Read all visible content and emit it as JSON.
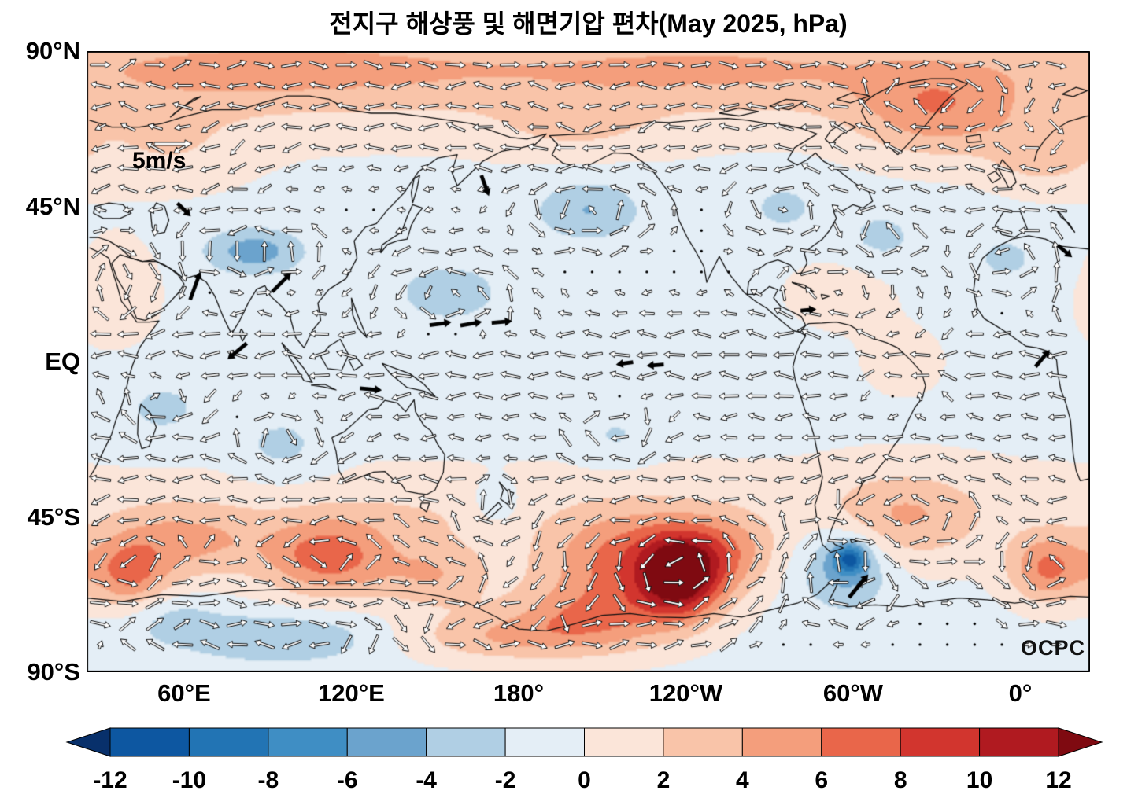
{
  "title": "전지구 해상풍 및 해면기압 편차(May 2025, hPa)",
  "watermark": "OCPC",
  "legend": {
    "ref_arrow_label": "5m/s",
    "ref_speed_mps": 5
  },
  "axes": {
    "lat_ticks": [
      {
        "label": "90°N",
        "lat": 90
      },
      {
        "label": "45°N",
        "lat": 45
      },
      {
        "label": "EQ",
        "lat": 0
      },
      {
        "label": "45°S",
        "lat": -45
      },
      {
        "label": "90°S",
        "lat": -90
      }
    ],
    "lon_ticks": [
      {
        "label": "60°E",
        "lon": 60
      },
      {
        "label": "120°E",
        "lon": 120
      },
      {
        "label": "180°",
        "lon": 180
      },
      {
        "label": "120°W",
        "lon": 240
      },
      {
        "label": "60°W",
        "lon": 300
      },
      {
        "label": "0°",
        "lon": 360
      }
    ]
  },
  "colorbar": {
    "ticks": [
      -12,
      -10,
      -8,
      -6,
      -4,
      -2,
      0,
      2,
      4,
      6,
      8,
      10,
      12
    ],
    "colors": [
      "#08306b",
      "#0d57a1",
      "#2274b4",
      "#3f8ec4",
      "#6ba3cd",
      "#b0cfe4",
      "#e4eef6",
      "#fbe5d9",
      "#f9c4a9",
      "#f49e7c",
      "#e9664a",
      "#d2352e",
      "#b01a20",
      "#7f0a11"
    ],
    "unit": "hPa"
  },
  "chart_data": {
    "type": "heatmap",
    "variable": "global sea level pressure anomaly",
    "vector_overlay": "surface wind anomaly vectors, reference arrow 5 m/s",
    "period": "May 2025",
    "units": "hPa",
    "lat_range": [
      -90,
      90
    ],
    "lon_start_deg_east": 25,
    "value_range": [
      -12,
      12
    ],
    "contour_interval": 2,
    "background_profile": "weakly negative (about -0.6 hPa) in tropics, weakly positive over the Arctic (about +1.4) and southern mid-latitudes (about +0.4)",
    "anomaly_centers": [
      {
        "lon": 90,
        "lat": 85,
        "v": 3.5,
        "sx": 60,
        "sy": 8
      },
      {
        "lon": 250,
        "lat": 85,
        "v": 3,
        "sx": 60,
        "sy": 8
      },
      {
        "lon": 330,
        "lat": 72,
        "v": 4.5,
        "sx": 20,
        "sy": 9
      },
      {
        "lon": 8,
        "lat": 60,
        "v": 3,
        "sx": 14,
        "sy": 8
      },
      {
        "lon": 55,
        "lat": 62,
        "v": 2,
        "sx": 20,
        "sy": 9
      },
      {
        "lon": 200,
        "lat": 68,
        "v": 2,
        "sx": 20,
        "sy": 6
      },
      {
        "lon": 35,
        "lat": 20,
        "v": 1.8,
        "sx": 12,
        "sy": 12
      },
      {
        "lon": 295,
        "lat": 20,
        "v": 1.5,
        "sx": 15,
        "sy": 8
      },
      {
        "lon": 318,
        "lat": 0,
        "v": 1.3,
        "sx": 12,
        "sy": 8
      },
      {
        "lon": 60,
        "lat": -52,
        "v": 4.5,
        "sx": 22,
        "sy": 8
      },
      {
        "lon": 112,
        "lat": -57,
        "v": 7,
        "sx": 16,
        "sy": 8
      },
      {
        "lon": 150,
        "lat": -62,
        "v": 4,
        "sx": 14,
        "sy": 7
      },
      {
        "lon": 40,
        "lat": -62,
        "v": 6,
        "sx": 10,
        "sy": 7
      },
      {
        "lon": 10,
        "lat": -60,
        "v": 6.5,
        "sx": 10,
        "sy": 7
      },
      {
        "lon": 220,
        "lat": -58,
        "v": 7,
        "sx": 22,
        "sy": 11
      },
      {
        "lon": 238,
        "lat": -62,
        "v": 12,
        "sx": 10,
        "sy": 8
      },
      {
        "lon": 255,
        "lat": -55,
        "v": 4,
        "sx": 12,
        "sy": 8
      },
      {
        "lon": 205,
        "lat": -75,
        "v": 5,
        "sx": 22,
        "sy": 7
      },
      {
        "lon": 170,
        "lat": -80,
        "v": 3.5,
        "sx": 25,
        "sy": 5
      },
      {
        "lon": 318,
        "lat": -45,
        "v": 4,
        "sx": 20,
        "sy": 9
      },
      {
        "lon": 140,
        "lat": -45,
        "v": 1.5,
        "sx": 25,
        "sy": 6
      },
      {
        "lon": 205,
        "lat": 44,
        "v": -3.5,
        "sx": 13,
        "sy": 6
      },
      {
        "lon": 155,
        "lat": 20,
        "v": -2,
        "sx": 18,
        "sy": 8
      },
      {
        "lon": 85,
        "lat": 32,
        "v": -4.5,
        "sx": 12,
        "sy": 4.5
      },
      {
        "lon": 310,
        "lat": 36,
        "v": -2,
        "sx": 10,
        "sy": 6
      },
      {
        "lon": 355,
        "lat": 30,
        "v": -1.6,
        "sx": 14,
        "sy": 8
      },
      {
        "lon": 52,
        "lat": -14,
        "v": -1.8,
        "sx": 14,
        "sy": 8
      },
      {
        "lon": 95,
        "lat": -25,
        "v": -2.2,
        "sx": 12,
        "sy": 7
      },
      {
        "lon": 215,
        "lat": -22,
        "v": -1.8,
        "sx": 10,
        "sy": 6
      },
      {
        "lon": 172,
        "lat": -42,
        "v": -2,
        "sx": 7,
        "sy": 5
      },
      {
        "lon": 297,
        "lat": -59,
        "v": -5,
        "sx": 11,
        "sy": 8
      },
      {
        "lon": 299,
        "lat": -57,
        "v": -7.5,
        "sx": 4,
        "sy": 3
      },
      {
        "lon": 95,
        "lat": -80,
        "v": -3.5,
        "sx": 25,
        "sy": 5
      },
      {
        "lon": 55,
        "lat": -74,
        "v": -2,
        "sx": 12,
        "sy": 5
      },
      {
        "lon": 275,
        "lat": 45,
        "v": -1.8,
        "sx": 12,
        "sy": 7
      }
    ],
    "black_arrows": [
      {
        "lon": 60,
        "lat": 44,
        "bearing": 135,
        "len": 24
      },
      {
        "lon": 64,
        "lat": 22,
        "bearing": 20,
        "len": 38
      },
      {
        "lon": 79,
        "lat": 3,
        "bearing": 230,
        "len": 32
      },
      {
        "lon": 95,
        "lat": 23,
        "bearing": 45,
        "len": 34
      },
      {
        "lon": 168,
        "lat": 51,
        "bearing": 160,
        "len": 28
      },
      {
        "lon": 152,
        "lat": 11,
        "bearing": 82,
        "len": 28
      },
      {
        "lon": 163,
        "lat": 11,
        "bearing": 80,
        "len": 28
      },
      {
        "lon": 174,
        "lat": 11.5,
        "bearing": 85,
        "len": 26
      },
      {
        "lon": 127,
        "lat": -8,
        "bearing": 95,
        "len": 28
      },
      {
        "lon": 218,
        "lat": -0.5,
        "bearing": 262,
        "len": 22
      },
      {
        "lon": 229,
        "lat": -1,
        "bearing": 266,
        "len": 22
      },
      {
        "lon": 284,
        "lat": 15,
        "bearing": 85,
        "len": 20
      },
      {
        "lon": 16,
        "lat": 32,
        "bearing": 130,
        "len": 24
      },
      {
        "lon": 8,
        "lat": 1,
        "bearing": 40,
        "len": 28
      },
      {
        "lon": 302,
        "lat": -65,
        "bearing": 40,
        "len": 38
      }
    ]
  }
}
